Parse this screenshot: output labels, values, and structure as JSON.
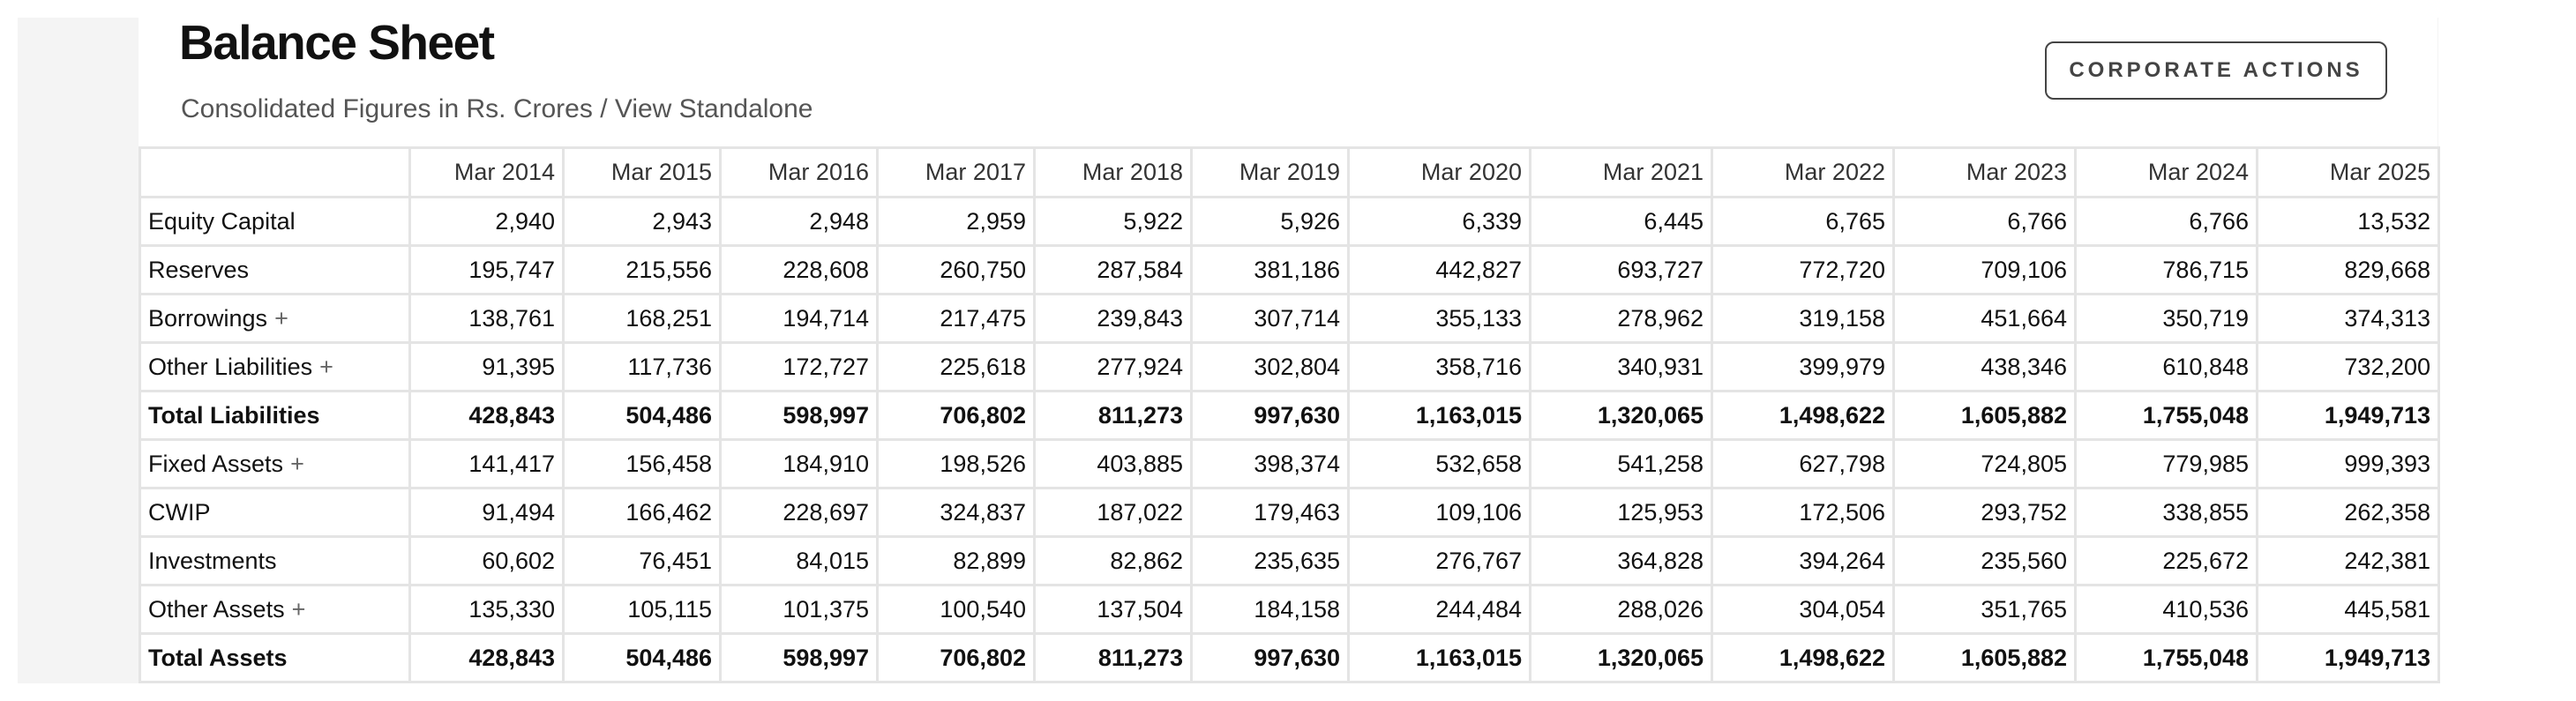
{
  "page": {
    "title": "Balance Sheet",
    "subtitle": "Consolidated Figures in Rs. Crores / View Standalone",
    "corporate_actions_label": "CORPORATE ACTIONS"
  },
  "table": {
    "columns": [
      "Mar 2014",
      "Mar 2015",
      "Mar 2016",
      "Mar 2017",
      "Mar 2018",
      "Mar 2019",
      "Mar 2020",
      "Mar 2021",
      "Mar 2022",
      "Mar 2023",
      "Mar 2024",
      "Mar 2025"
    ],
    "rows": [
      {
        "label": "Equity Capital",
        "expandable": false,
        "total": false,
        "values": [
          "2,940",
          "2,943",
          "2,948",
          "2,959",
          "5,922",
          "5,926",
          "6,339",
          "6,445",
          "6,765",
          "6,766",
          "6,766",
          "13,532"
        ]
      },
      {
        "label": "Reserves",
        "expandable": false,
        "total": false,
        "values": [
          "195,747",
          "215,556",
          "228,608",
          "260,750",
          "287,584",
          "381,186",
          "442,827",
          "693,727",
          "772,720",
          "709,106",
          "786,715",
          "829,668"
        ]
      },
      {
        "label": "Borrowings",
        "expandable": true,
        "total": false,
        "values": [
          "138,761",
          "168,251",
          "194,714",
          "217,475",
          "239,843",
          "307,714",
          "355,133",
          "278,962",
          "319,158",
          "451,664",
          "350,719",
          "374,313"
        ]
      },
      {
        "label": "Other Liabilities",
        "expandable": true,
        "total": false,
        "values": [
          "91,395",
          "117,736",
          "172,727",
          "225,618",
          "277,924",
          "302,804",
          "358,716",
          "340,931",
          "399,979",
          "438,346",
          "610,848",
          "732,200"
        ]
      },
      {
        "label": "Total Liabilities",
        "expandable": false,
        "total": true,
        "values": [
          "428,843",
          "504,486",
          "598,997",
          "706,802",
          "811,273",
          "997,630",
          "1,163,015",
          "1,320,065",
          "1,498,622",
          "1,605,882",
          "1,755,048",
          "1,949,713"
        ]
      },
      {
        "label": "Fixed Assets",
        "expandable": true,
        "total": false,
        "values": [
          "141,417",
          "156,458",
          "184,910",
          "198,526",
          "403,885",
          "398,374",
          "532,658",
          "541,258",
          "627,798",
          "724,805",
          "779,985",
          "999,393"
        ]
      },
      {
        "label": "CWIP",
        "expandable": false,
        "total": false,
        "values": [
          "91,494",
          "166,462",
          "228,697",
          "324,837",
          "187,022",
          "179,463",
          "109,106",
          "125,953",
          "172,506",
          "293,752",
          "338,855",
          "262,358"
        ]
      },
      {
        "label": "Investments",
        "expandable": false,
        "total": false,
        "values": [
          "60,602",
          "76,451",
          "84,015",
          "82,899",
          "82,862",
          "235,635",
          "276,767",
          "364,828",
          "394,264",
          "235,560",
          "225,672",
          "242,381"
        ]
      },
      {
        "label": "Other Assets",
        "expandable": true,
        "total": false,
        "values": [
          "135,330",
          "105,115",
          "101,375",
          "100,540",
          "137,504",
          "184,158",
          "244,484",
          "288,026",
          "304,054",
          "351,765",
          "410,536",
          "445,581"
        ]
      },
      {
        "label": "Total Assets",
        "expandable": false,
        "total": true,
        "values": [
          "428,843",
          "504,486",
          "598,997",
          "706,802",
          "811,273",
          "997,630",
          "1,163,015",
          "1,320,065",
          "1,498,622",
          "1,605,882",
          "1,755,048",
          "1,949,713"
        ]
      }
    ],
    "expand_glyph": "+"
  }
}
